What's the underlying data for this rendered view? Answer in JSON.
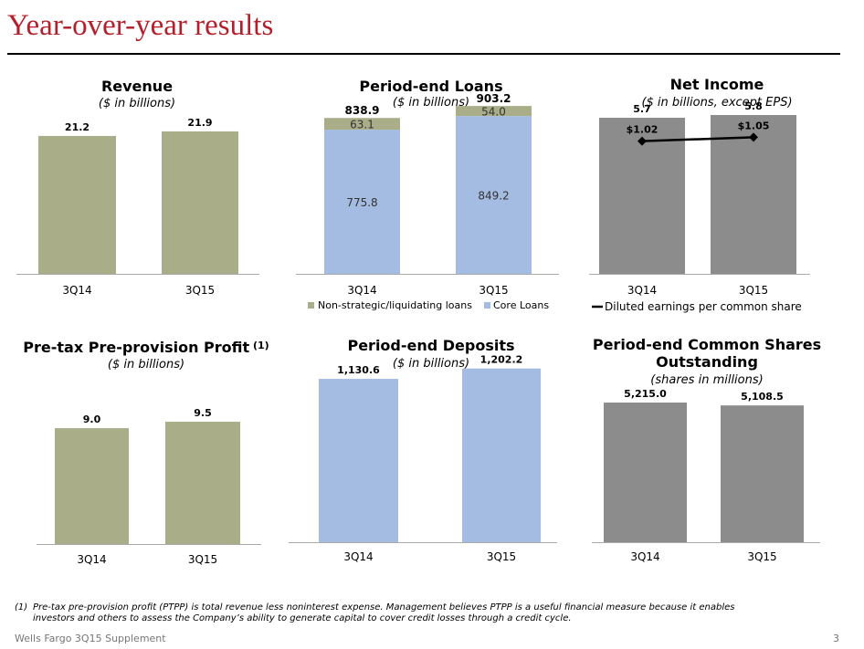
{
  "page": {
    "title": "Year-over-year results",
    "footnote_marker": "(1)",
    "footnote_line1": "Pre-tax pre-provision profit (PTPP) is total revenue less noninterest expense. Management believes PTPP is a useful financial measure because it enables",
    "footnote_line2": "investors and others to assess the Company’s ability to generate capital to cover credit losses through a credit cycle.",
    "footer_left": "Wells Fargo 3Q15 Supplement",
    "page_number": "3"
  },
  "colors": {
    "olive": "#a9ae88",
    "blue": "#a4bce1",
    "gray": "#8c8c8c",
    "title": "#b3202b"
  },
  "chart_data": [
    {
      "id": "revenue",
      "type": "bar",
      "title": "Revenue",
      "subtitle": "($ in billions)",
      "categories": [
        "3Q14",
        "3Q15"
      ],
      "values": [
        21.2,
        21.9
      ],
      "value_labels": [
        "21.2",
        "21.9"
      ],
      "ylim": [
        0,
        32
      ],
      "color": "olive"
    },
    {
      "id": "loans",
      "type": "bar",
      "stacked": true,
      "title": "Period-end Loans",
      "subtitle": "($ in billions)",
      "categories": [
        "3Q14",
        "3Q15"
      ],
      "series": [
        {
          "name": "Core Loans",
          "values": [
            775.8,
            849.2
          ],
          "labels": [
            "775.8",
            "849.2"
          ],
          "color": "blue"
        },
        {
          "name": "Non-strategic/liquidating loans",
          "values": [
            63.1,
            54.0
          ],
          "labels": [
            "63.1",
            "54.0"
          ],
          "color": "olive"
        }
      ],
      "totals": [
        "838.9",
        "903.2"
      ],
      "total_values": [
        838.9,
        903.2
      ],
      "ylim": [
        0,
        1120
      ],
      "legend": [
        {
          "name": "Non-strategic/liquidating loans",
          "color": "olive"
        },
        {
          "name": "Core Loans",
          "color": "blue"
        }
      ],
      "legend_position": "bottom"
    },
    {
      "id": "netincome",
      "type": "bar",
      "title": "Net Income",
      "subtitle": "($ in billions, except EPS)",
      "categories": [
        "3Q14",
        "3Q15"
      ],
      "values": [
        5.7,
        5.8
      ],
      "value_labels": [
        "5.7",
        "5.8"
      ],
      "ylim": [
        0,
        7.6
      ],
      "color": "gray",
      "line_series": {
        "name": "Diluted earnings per common share",
        "values": [
          1.02,
          1.05
        ],
        "labels": [
          "$1.02",
          "$1.05"
        ],
        "ylim": [
          0,
          1.6
        ]
      },
      "legend": [
        {
          "name": "Diluted earnings per common share",
          "marker": "line"
        }
      ],
      "legend_position": "bottom"
    },
    {
      "id": "ptpp",
      "type": "bar",
      "title": "Pre-tax Pre-provision Profit",
      "title_note": "(1)",
      "subtitle": "($ in billions)",
      "categories": [
        "3Q14",
        "3Q15"
      ],
      "values": [
        9.0,
        9.5
      ],
      "value_labels": [
        "9.0",
        "9.5"
      ],
      "ylim": [
        0,
        15.6
      ],
      "color": "olive"
    },
    {
      "id": "deposits",
      "type": "bar",
      "title": "Period-end Deposits",
      "subtitle": "($ in billions)",
      "categories": [
        "3Q14",
        "3Q15"
      ],
      "values": [
        1130.6,
        1202.2
      ],
      "value_labels": [
        "1,130.6",
        "1,202.2"
      ],
      "ylim": [
        0,
        1390
      ],
      "color": "blue"
    },
    {
      "id": "shares",
      "type": "bar",
      "title_line1": "Period-end Common Shares",
      "title_line2": "Outstanding",
      "subtitle": "(shares in millions)",
      "categories": [
        "3Q14",
        "3Q15"
      ],
      "values": [
        5215.0,
        5108.5
      ],
      "value_labels": [
        "5,215.0",
        "5,108.5"
      ],
      "ylim": [
        0,
        7500
      ],
      "color": "gray"
    }
  ]
}
